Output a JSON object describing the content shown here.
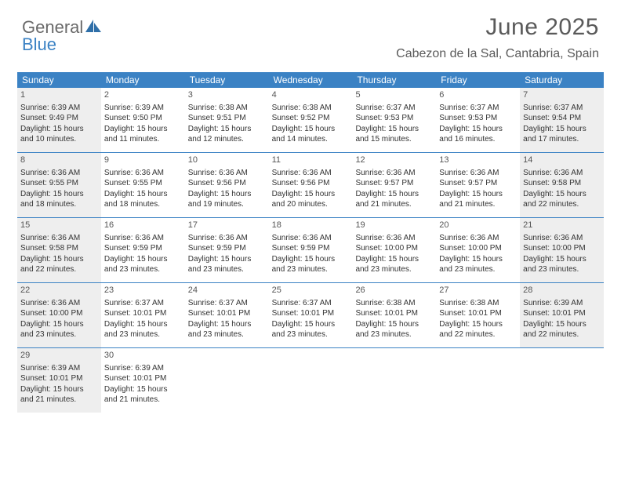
{
  "logo": {
    "text1": "General",
    "text2": "Blue"
  },
  "title": "June 2025",
  "location": "Cabezon de la Sal, Cantabria, Spain",
  "header_color": "#3b82c4",
  "shade_color": "#eeeeee",
  "weekdays": [
    "Sunday",
    "Monday",
    "Tuesday",
    "Wednesday",
    "Thursday",
    "Friday",
    "Saturday"
  ],
  "weeks": [
    [
      {
        "n": "1",
        "shaded": true,
        "sr": "Sunrise: 6:39 AM",
        "ss": "Sunset: 9:49 PM",
        "d1": "Daylight: 15 hours",
        "d2": "and 10 minutes."
      },
      {
        "n": "2",
        "shaded": false,
        "sr": "Sunrise: 6:39 AM",
        "ss": "Sunset: 9:50 PM",
        "d1": "Daylight: 15 hours",
        "d2": "and 11 minutes."
      },
      {
        "n": "3",
        "shaded": false,
        "sr": "Sunrise: 6:38 AM",
        "ss": "Sunset: 9:51 PM",
        "d1": "Daylight: 15 hours",
        "d2": "and 12 minutes."
      },
      {
        "n": "4",
        "shaded": false,
        "sr": "Sunrise: 6:38 AM",
        "ss": "Sunset: 9:52 PM",
        "d1": "Daylight: 15 hours",
        "d2": "and 14 minutes."
      },
      {
        "n": "5",
        "shaded": false,
        "sr": "Sunrise: 6:37 AM",
        "ss": "Sunset: 9:53 PM",
        "d1": "Daylight: 15 hours",
        "d2": "and 15 minutes."
      },
      {
        "n": "6",
        "shaded": false,
        "sr": "Sunrise: 6:37 AM",
        "ss": "Sunset: 9:53 PM",
        "d1": "Daylight: 15 hours",
        "d2": "and 16 minutes."
      },
      {
        "n": "7",
        "shaded": true,
        "sr": "Sunrise: 6:37 AM",
        "ss": "Sunset: 9:54 PM",
        "d1": "Daylight: 15 hours",
        "d2": "and 17 minutes."
      }
    ],
    [
      {
        "n": "8",
        "shaded": true,
        "sr": "Sunrise: 6:36 AM",
        "ss": "Sunset: 9:55 PM",
        "d1": "Daylight: 15 hours",
        "d2": "and 18 minutes."
      },
      {
        "n": "9",
        "shaded": false,
        "sr": "Sunrise: 6:36 AM",
        "ss": "Sunset: 9:55 PM",
        "d1": "Daylight: 15 hours",
        "d2": "and 18 minutes."
      },
      {
        "n": "10",
        "shaded": false,
        "sr": "Sunrise: 6:36 AM",
        "ss": "Sunset: 9:56 PM",
        "d1": "Daylight: 15 hours",
        "d2": "and 19 minutes."
      },
      {
        "n": "11",
        "shaded": false,
        "sr": "Sunrise: 6:36 AM",
        "ss": "Sunset: 9:56 PM",
        "d1": "Daylight: 15 hours",
        "d2": "and 20 minutes."
      },
      {
        "n": "12",
        "shaded": false,
        "sr": "Sunrise: 6:36 AM",
        "ss": "Sunset: 9:57 PM",
        "d1": "Daylight: 15 hours",
        "d2": "and 21 minutes."
      },
      {
        "n": "13",
        "shaded": false,
        "sr": "Sunrise: 6:36 AM",
        "ss": "Sunset: 9:57 PM",
        "d1": "Daylight: 15 hours",
        "d2": "and 21 minutes."
      },
      {
        "n": "14",
        "shaded": true,
        "sr": "Sunrise: 6:36 AM",
        "ss": "Sunset: 9:58 PM",
        "d1": "Daylight: 15 hours",
        "d2": "and 22 minutes."
      }
    ],
    [
      {
        "n": "15",
        "shaded": true,
        "sr": "Sunrise: 6:36 AM",
        "ss": "Sunset: 9:58 PM",
        "d1": "Daylight: 15 hours",
        "d2": "and 22 minutes."
      },
      {
        "n": "16",
        "shaded": false,
        "sr": "Sunrise: 6:36 AM",
        "ss": "Sunset: 9:59 PM",
        "d1": "Daylight: 15 hours",
        "d2": "and 23 minutes."
      },
      {
        "n": "17",
        "shaded": false,
        "sr": "Sunrise: 6:36 AM",
        "ss": "Sunset: 9:59 PM",
        "d1": "Daylight: 15 hours",
        "d2": "and 23 minutes."
      },
      {
        "n": "18",
        "shaded": false,
        "sr": "Sunrise: 6:36 AM",
        "ss": "Sunset: 9:59 PM",
        "d1": "Daylight: 15 hours",
        "d2": "and 23 minutes."
      },
      {
        "n": "19",
        "shaded": false,
        "sr": "Sunrise: 6:36 AM",
        "ss": "Sunset: 10:00 PM",
        "d1": "Daylight: 15 hours",
        "d2": "and 23 minutes."
      },
      {
        "n": "20",
        "shaded": false,
        "sr": "Sunrise: 6:36 AM",
        "ss": "Sunset: 10:00 PM",
        "d1": "Daylight: 15 hours",
        "d2": "and 23 minutes."
      },
      {
        "n": "21",
        "shaded": true,
        "sr": "Sunrise: 6:36 AM",
        "ss": "Sunset: 10:00 PM",
        "d1": "Daylight: 15 hours",
        "d2": "and 23 minutes."
      }
    ],
    [
      {
        "n": "22",
        "shaded": true,
        "sr": "Sunrise: 6:36 AM",
        "ss": "Sunset: 10:00 PM",
        "d1": "Daylight: 15 hours",
        "d2": "and 23 minutes."
      },
      {
        "n": "23",
        "shaded": false,
        "sr": "Sunrise: 6:37 AM",
        "ss": "Sunset: 10:01 PM",
        "d1": "Daylight: 15 hours",
        "d2": "and 23 minutes."
      },
      {
        "n": "24",
        "shaded": false,
        "sr": "Sunrise: 6:37 AM",
        "ss": "Sunset: 10:01 PM",
        "d1": "Daylight: 15 hours",
        "d2": "and 23 minutes."
      },
      {
        "n": "25",
        "shaded": false,
        "sr": "Sunrise: 6:37 AM",
        "ss": "Sunset: 10:01 PM",
        "d1": "Daylight: 15 hours",
        "d2": "and 23 minutes."
      },
      {
        "n": "26",
        "shaded": false,
        "sr": "Sunrise: 6:38 AM",
        "ss": "Sunset: 10:01 PM",
        "d1": "Daylight: 15 hours",
        "d2": "and 23 minutes."
      },
      {
        "n": "27",
        "shaded": false,
        "sr": "Sunrise: 6:38 AM",
        "ss": "Sunset: 10:01 PM",
        "d1": "Daylight: 15 hours",
        "d2": "and 22 minutes."
      },
      {
        "n": "28",
        "shaded": true,
        "sr": "Sunrise: 6:39 AM",
        "ss": "Sunset: 10:01 PM",
        "d1": "Daylight: 15 hours",
        "d2": "and 22 minutes."
      }
    ],
    [
      {
        "n": "29",
        "shaded": true,
        "sr": "Sunrise: 6:39 AM",
        "ss": "Sunset: 10:01 PM",
        "d1": "Daylight: 15 hours",
        "d2": "and 21 minutes."
      },
      {
        "n": "30",
        "shaded": false,
        "sr": "Sunrise: 6:39 AM",
        "ss": "Sunset: 10:01 PM",
        "d1": "Daylight: 15 hours",
        "d2": "and 21 minutes."
      },
      {
        "empty": true
      },
      {
        "empty": true
      },
      {
        "empty": true
      },
      {
        "empty": true
      },
      {
        "empty": true
      }
    ]
  ]
}
